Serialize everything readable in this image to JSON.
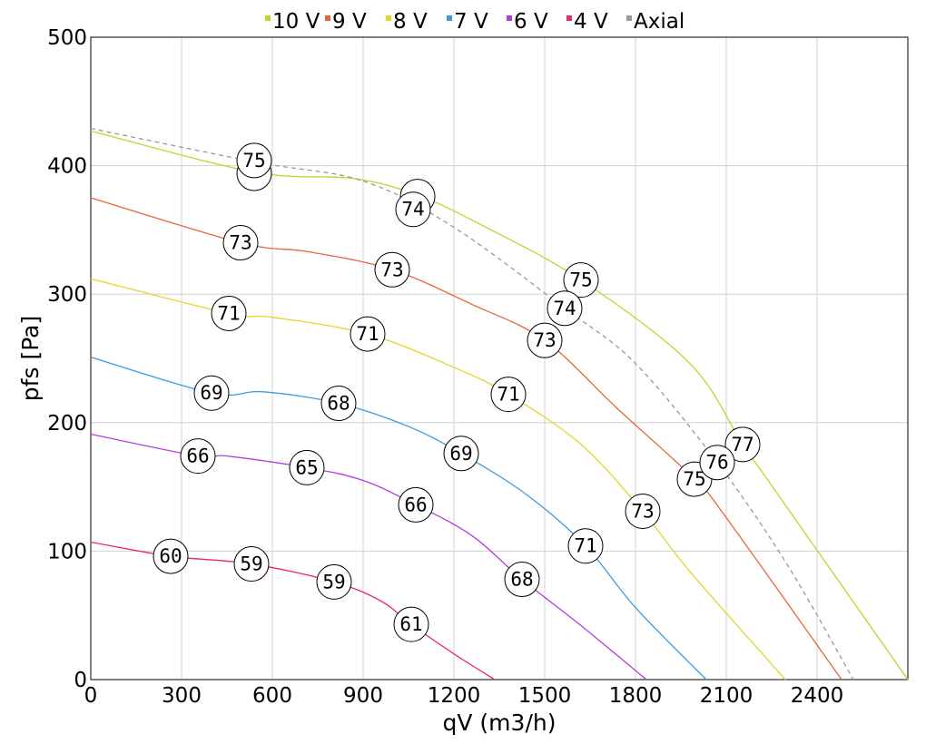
{
  "chart_data": {
    "type": "line",
    "title": "",
    "xlabel": "qV (m3/h)",
    "ylabel": "pfs [Pa]",
    "xlim": [
      0,
      2700
    ],
    "ylim": [
      0,
      500
    ],
    "xticks": [
      "0",
      "300",
      "600",
      "900",
      "1200",
      "1500",
      "1800",
      "2100",
      "2400"
    ],
    "xtick_values": [
      0,
      300,
      600,
      900,
      1200,
      1500,
      1800,
      2100,
      2400
    ],
    "yticks": [
      "0",
      "100",
      "200",
      "300",
      "400",
      "500"
    ],
    "ytick_values": [
      0,
      100,
      200,
      300,
      400,
      500
    ],
    "grid": true,
    "legend_position": "top",
    "series": [
      {
        "name": "10 V",
        "color": "#b8d82c",
        "dashed": false,
        "points": [
          [
            0,
            427
          ],
          [
            540,
            395
          ],
          [
            870,
            390
          ],
          [
            1080,
            377
          ],
          [
            1290,
            354
          ],
          [
            1620,
            311
          ],
          [
            1980,
            246
          ],
          [
            2154,
            183
          ],
          [
            2250,
            151
          ],
          [
            2700,
            0
          ]
        ],
        "labels": [
          {
            "q": 540,
            "p": 394,
            "text": null
          },
          {
            "q": 1080,
            "p": 376,
            "text": null
          },
          {
            "q": 1620,
            "p": 311,
            "text": "75"
          },
          {
            "q": 2154,
            "p": 183,
            "text": "77"
          }
        ]
      },
      {
        "name": "9 V",
        "color": "#e8663a",
        "dashed": false,
        "points": [
          [
            0,
            375
          ],
          [
            495,
            340
          ],
          [
            720,
            333
          ],
          [
            996,
            319
          ],
          [
            1260,
            292
          ],
          [
            1500,
            264
          ],
          [
            1740,
            211
          ],
          [
            1995,
            156
          ],
          [
            2100,
            126
          ],
          [
            2481,
            0
          ]
        ],
        "labels": [
          {
            "q": 495,
            "p": 340,
            "text": "73"
          },
          {
            "q": 996,
            "p": 319,
            "text": "73"
          },
          {
            "q": 1500,
            "p": 264,
            "text": "73"
          },
          {
            "q": 1995,
            "p": 156,
            "text": "75"
          }
        ]
      },
      {
        "name": "8 V",
        "color": "#e3d52c",
        "dashed": false,
        "points": [
          [
            0,
            312
          ],
          [
            456,
            285
          ],
          [
            600,
            282
          ],
          [
            915,
            269
          ],
          [
            1200,
            243
          ],
          [
            1380,
            222
          ],
          [
            1620,
            183
          ],
          [
            1824,
            131
          ],
          [
            1980,
            84
          ],
          [
            2295,
            0
          ]
        ],
        "labels": [
          {
            "q": 456,
            "p": 285,
            "text": "71"
          },
          {
            "q": 915,
            "p": 269,
            "text": "71"
          },
          {
            "q": 1380,
            "p": 222,
            "text": "71"
          },
          {
            "q": 1824,
            "p": 131,
            "text": "73"
          }
        ]
      },
      {
        "name": "7 V",
        "color": "#3a9be0",
        "dashed": false,
        "points": [
          [
            0,
            251
          ],
          [
            399,
            223
          ],
          [
            570,
            224
          ],
          [
            819,
            215
          ],
          [
            1050,
            197
          ],
          [
            1224,
            176
          ],
          [
            1440,
            144
          ],
          [
            1635,
            104
          ],
          [
            1800,
            56
          ],
          [
            2034,
            0
          ]
        ],
        "labels": [
          {
            "q": 399,
            "p": 223,
            "text": "69"
          },
          {
            "q": 819,
            "p": 215,
            "text": "68"
          },
          {
            "q": 1224,
            "p": 176,
            "text": "69"
          },
          {
            "q": 1635,
            "p": 104,
            "text": "71"
          }
        ]
      },
      {
        "name": "6 V",
        "color": "#b03be6",
        "dashed": false,
        "points": [
          [
            0,
            191
          ],
          [
            354,
            174
          ],
          [
            450,
            174
          ],
          [
            714,
            165
          ],
          [
            900,
            155
          ],
          [
            1074,
            136
          ],
          [
            1260,
            112
          ],
          [
            1425,
            78
          ],
          [
            1620,
            42
          ],
          [
            1836,
            0
          ]
        ],
        "labels": [
          {
            "q": 354,
            "p": 174,
            "text": "66"
          },
          {
            "q": 714,
            "p": 165,
            "text": "65"
          },
          {
            "q": 1074,
            "p": 136,
            "text": "66"
          },
          {
            "q": 1425,
            "p": 78,
            "text": "68"
          }
        ]
      },
      {
        "name": "4 V",
        "color": "#e8286a",
        "dashed": false,
        "points": [
          [
            0,
            107
          ],
          [
            264,
            96
          ],
          [
            531,
            90
          ],
          [
            804,
            76
          ],
          [
            960,
            61
          ],
          [
            1059,
            43
          ],
          [
            1200,
            20
          ],
          [
            1335,
            0
          ]
        ],
        "labels": [
          {
            "q": 264,
            "p": 96,
            "text": "60"
          },
          {
            "q": 531,
            "p": 90,
            "text": "59"
          },
          {
            "q": 804,
            "p": 76,
            "text": "59"
          },
          {
            "q": 1059,
            "p": 43,
            "text": "61"
          }
        ]
      },
      {
        "name": "Axial",
        "color": "#999999",
        "dashed": true,
        "points": [
          [
            0,
            429
          ],
          [
            540,
            403
          ],
          [
            900,
            388
          ],
          [
            1200,
            352
          ],
          [
            1566,
            289
          ],
          [
            1800,
            246
          ],
          [
            2070,
            169
          ],
          [
            2300,
            90
          ],
          [
            2520,
            0
          ]
        ],
        "labels": [
          {
            "q": 540,
            "p": 404,
            "text": "75"
          },
          {
            "q": 1065,
            "p": 366,
            "text": "74"
          },
          {
            "q": 1566,
            "p": 289,
            "text": "74"
          },
          {
            "q": 2070,
            "p": 169,
            "text": "76"
          }
        ]
      }
    ]
  }
}
